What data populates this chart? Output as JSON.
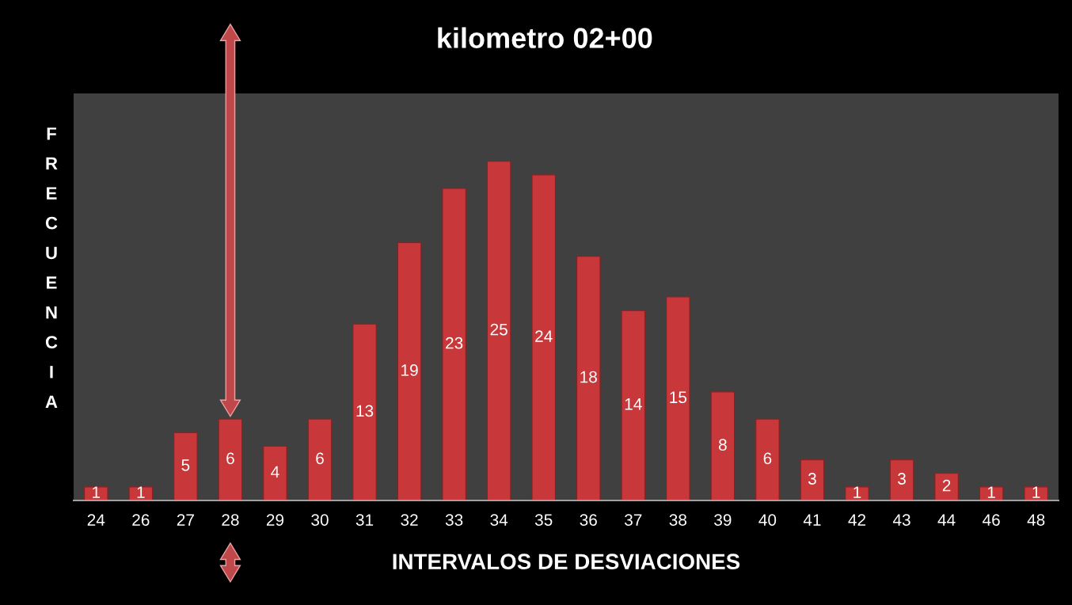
{
  "chart_data": {
    "type": "bar",
    "title": "kilometro 02+00",
    "xlabel": "INTERVALOS DE DESVIACIONES",
    "ylabel": "FRECUENCIA",
    "categories": [
      "24",
      "26",
      "27",
      "28",
      "29",
      "30",
      "31",
      "32",
      "33",
      "34",
      "35",
      "36",
      "37",
      "38",
      "39",
      "40",
      "41",
      "42",
      "43",
      "44",
      "46",
      "48"
    ],
    "values": [
      1,
      1,
      5,
      6,
      4,
      6,
      13,
      19,
      23,
      25,
      24,
      18,
      14,
      15,
      8,
      6,
      3,
      1,
      3,
      2,
      1,
      1
    ],
    "color": "#c8383a",
    "ylim": [
      0,
      30
    ],
    "data_labels": true,
    "grid": false,
    "tick_labels": "x"
  }
}
